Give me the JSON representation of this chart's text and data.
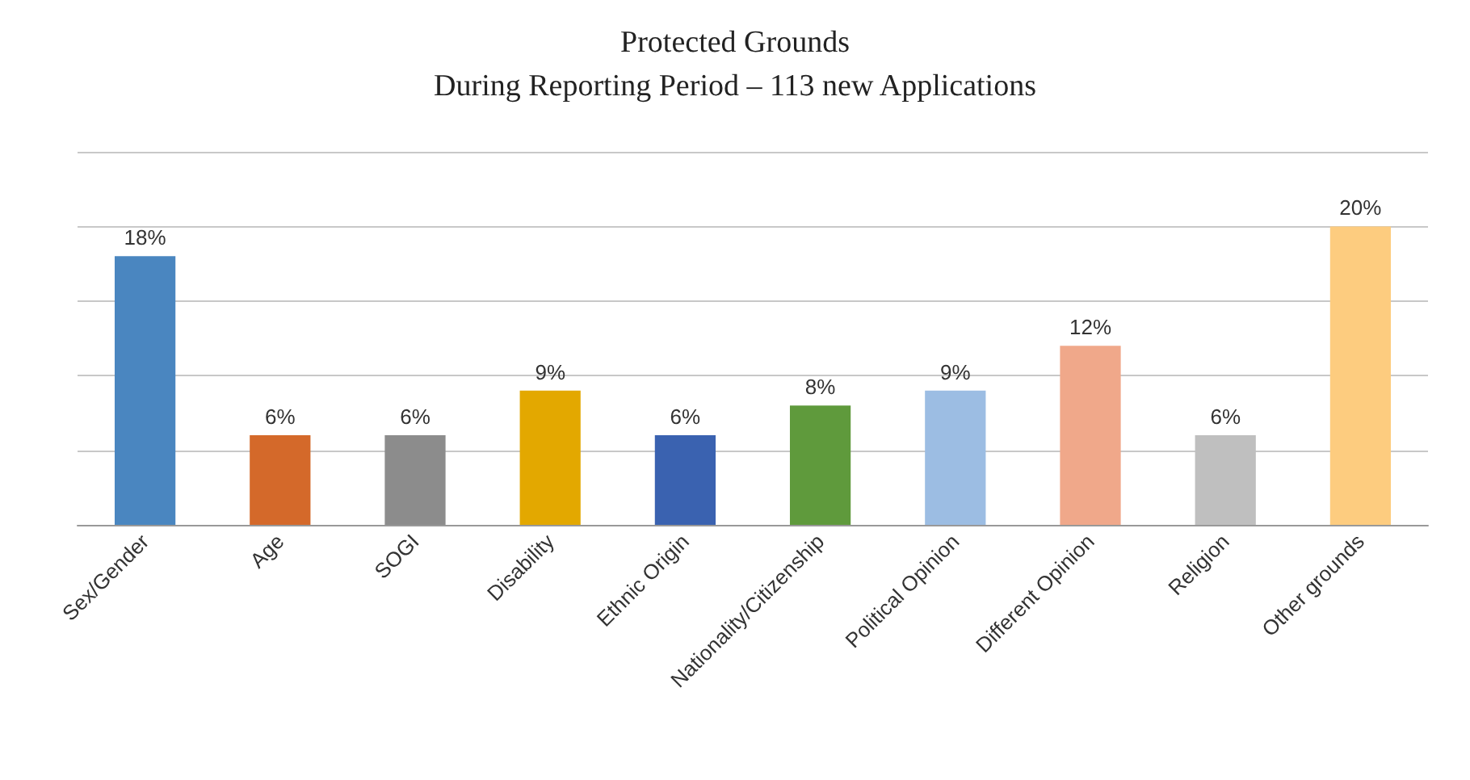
{
  "chart_data": {
    "type": "bar",
    "title": "Protected Grounds",
    "subtitle": "During Reporting Period – 113 new Applications",
    "categories": [
      "Sex/Gender",
      "Age",
      "SOGI",
      "Disability",
      "Ethnic Origin",
      "Nationality/Citizenship",
      "Political Opinion",
      "Different Opinion",
      "Religion",
      "Other grounds"
    ],
    "values": [
      18,
      6,
      6,
      9,
      6,
      8,
      9,
      12,
      6,
      20
    ],
    "value_labels": [
      "18%",
      "6%",
      "6%",
      "9%",
      "6%",
      "8%",
      "9%",
      "12%",
      "6%",
      "20%"
    ],
    "colors": [
      "#4a86c0",
      "#d4692a",
      "#8c8c8c",
      "#e3a800",
      "#3a62b0",
      "#5f9a3c",
      "#9cbde3",
      "#f0a88a",
      "#bfbfbf",
      "#fdcc7f"
    ],
    "ylim": [
      0,
      25
    ],
    "yticks": [
      {
        "value": 0,
        "label": null
      },
      {
        "value": 5,
        "label": null
      },
      {
        "value": 10,
        "label": null
      },
      {
        "value": 15,
        "label": null
      },
      {
        "value": 20,
        "label": null
      },
      {
        "value": 25,
        "label": null
      }
    ],
    "grid": "y",
    "tick_labels": "x"
  }
}
